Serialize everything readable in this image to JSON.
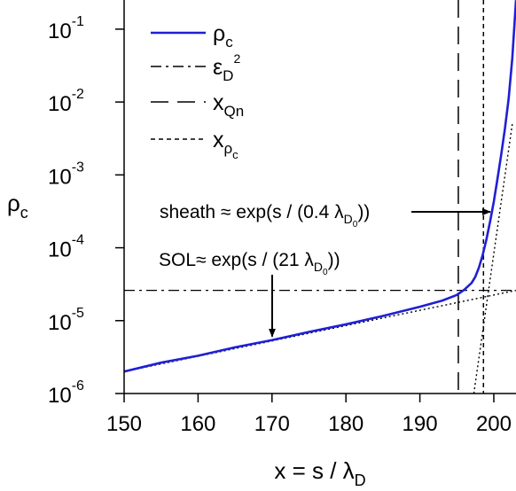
{
  "chart_data": {
    "type": "line",
    "xlabel_main": "x = s / λ",
    "xlabel_sub": "D",
    "ylabel_main": "ρ",
    "ylabel_sub": "c",
    "xlim": [
      150,
      203
    ],
    "ylim_log10": [
      -6,
      -0.6
    ],
    "yscale": "log",
    "grid": false,
    "legend_position": "top-left",
    "x_ticks": [
      150,
      160,
      170,
      180,
      190,
      200
    ],
    "y_ticks": [
      {
        "base": "10",
        "exp": "-6"
      },
      {
        "base": "10",
        "exp": "-5"
      },
      {
        "base": "10",
        "exp": "-4"
      },
      {
        "base": "10",
        "exp": "-3"
      },
      {
        "base": "10",
        "exp": "-2"
      },
      {
        "base": "10",
        "exp": "-1"
      }
    ],
    "series": [
      {
        "name": "ρc",
        "color": "#1f1fd6",
        "style": "solid",
        "x": [
          150,
          155,
          160,
          165,
          170,
          175,
          180,
          185,
          190,
          193,
          195,
          196,
          197,
          197.5,
          198,
          198.5,
          199,
          199.5,
          200,
          200.5,
          201,
          201.5,
          202,
          202.5,
          203
        ],
        "y": [
          2e-06,
          2.65e-06,
          3.3e-06,
          4.3e-06,
          5.4e-06,
          7e-06,
          8.9e-06,
          1.16e-05,
          1.55e-05,
          1.88e-05,
          2.25e-05,
          2.65e-05,
          3.3e-05,
          4e-05,
          5.4e-05,
          8e-05,
          0.00013,
          0.00023,
          0.00043,
          0.00089,
          0.0019,
          0.0043,
          0.011,
          0.04,
          0.25
        ]
      },
      {
        "name": "εD²",
        "color": "#000000",
        "style": "dashdot",
        "y_const": 2.6e-05
      },
      {
        "name": "xQn",
        "color": "#000000",
        "style": "longdash",
        "x_const": 195.2
      },
      {
        "name": "xρc",
        "color": "#000000",
        "style": "shortdash",
        "x_const": 198.6
      },
      {
        "name": "SOL fit",
        "color": "#000000",
        "style": "dotted",
        "x": [
          150,
          203
        ],
        "y": [
          2e-06,
          2.6e-05
        ]
      },
      {
        "name": "sheath fit",
        "color": "#000000",
        "style": "dotted",
        "x": [
          197.3,
          202.5
        ],
        "y": [
          1e-06,
          0.005
        ]
      }
    ],
    "legend": [
      {
        "main": "ρ",
        "sub": "c",
        "style": "solid"
      },
      {
        "main": "ε",
        "sub": "D",
        "sup": "2",
        "style": "dashdot"
      },
      {
        "main": "x",
        "sub": "Qn",
        "style": "longdash"
      },
      {
        "main": "x",
        "sub": "ρ",
        "subsub": "c",
        "style": "shortdash"
      }
    ],
    "annotations": {
      "sheath": {
        "prefix": "sheath ≈ exp(s / (0.4 λ",
        "sub": "D",
        "subsub": "0",
        "suffix": "))",
        "target": {
          "x": 200,
          "y": 0.00019
        }
      },
      "sol": {
        "prefix": "SOL≈ exp(s / (21 λ",
        "sub": "D",
        "subsub": "0",
        "suffix": "))",
        "target": {
          "x": 170,
          "y": 5.4e-06
        }
      }
    }
  }
}
